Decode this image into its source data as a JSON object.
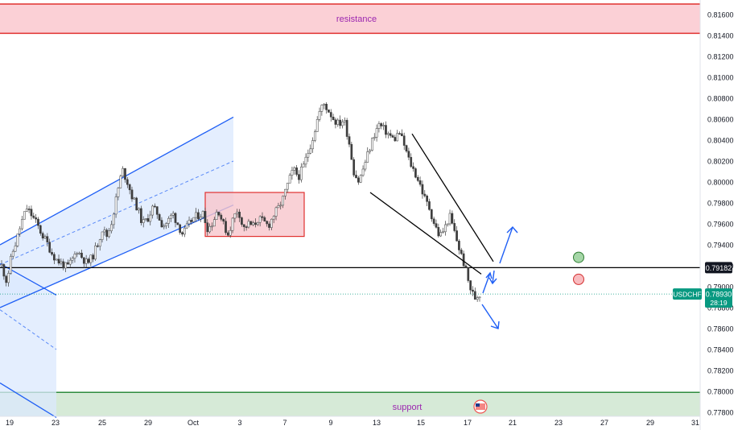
{
  "chart_data": {
    "type": "candlestick",
    "symbol": "USDCHF",
    "last_price": "0.78930",
    "countdown": "28:19",
    "key_level": "0.79182",
    "zone_labels": {
      "resistance": "resistance",
      "support": "support"
    },
    "ylim": [
      0.7776,
      0.818
    ],
    "y_ticks": [
      "0.81600",
      "0.81400",
      "0.81200",
      "0.81000",
      "0.80800",
      "0.80600",
      "0.80400",
      "0.80200",
      "0.80000",
      "0.79800",
      "0.79600",
      "0.79400",
      "0.79200",
      "0.79000",
      "0.78800",
      "0.78600",
      "0.78400",
      "0.78200",
      "0.78000",
      "0.77800"
    ],
    "x_ticks": [
      "19",
      "23",
      "25",
      "29",
      "Oct",
      "3",
      "7",
      "9",
      "13",
      "15",
      "17",
      "21",
      "23",
      "27",
      "29",
      "31"
    ],
    "resistance_zone": [
      0.8142,
      0.817
    ],
    "support_zone": [
      0.7779,
      0.7799
    ],
    "price_path": [
      [
        0.792,
        0.7905,
        0.793,
        0.7945,
        0.7962,
        0.7975,
        0.7968,
        0.796,
        0.795,
        0.7942,
        0.7932,
        0.7925,
        0.7922,
        0.7918,
        0.7925,
        0.7935,
        0.7928,
        0.7922,
        0.7928,
        0.794,
        0.7955,
        0.7948,
        0.7965,
        0.799,
        0.8012,
        0.8,
        0.7985,
        0.7975,
        0.796,
        0.7965,
        0.7975,
        0.797,
        0.7958,
        0.7962,
        0.797,
        0.796,
        0.795,
        0.7958,
        0.7965,
        0.7968,
        0.797,
        0.7955,
        0.7962,
        0.7975,
        0.796,
        0.795,
        0.7965,
        0.7975,
        0.7955,
        0.796,
        0.7958,
        0.7965,
        0.7962,
        0.7958,
        0.7968,
        0.7975,
        0.7985,
        0.8,
        0.8012,
        0.8005,
        0.8015,
        0.803,
        0.8045,
        0.8065,
        0.8075,
        0.8068,
        0.806,
        0.8055,
        0.806,
        0.804,
        0.801,
        0.8,
        0.8015,
        0.803,
        0.8045,
        0.8055,
        0.805,
        0.8045,
        0.804,
        0.8048,
        0.8035,
        0.802,
        0.801,
        0.8,
        0.7985,
        0.7975,
        0.796,
        0.7948,
        0.7955,
        0.7968,
        0.7952,
        0.7935,
        0.792,
        0.79,
        0.7889,
        0.7893
      ]
    ],
    "candle_range": [
      0.792,
      0.7893
    ],
    "wedge_upper": [
      [
        0.8046,
        0.7924
      ]
    ],
    "wedge_lower": [
      [
        0.799,
        0.7912
      ]
    ],
    "channel_upper": [
      [
        0.794,
        0.8062
      ]
    ],
    "channel_mid": [
      [
        0.792,
        0.802
      ]
    ],
    "channel_lower": [
      [
        0.788,
        0.7978
      ]
    ],
    "consolidation_box": [
      0.7948,
      0.799
    ],
    "scenario_up_target": 0.7956,
    "scenario_down_target": 0.7864,
    "buy_marker": 0.7928,
    "sell_marker": 0.7907,
    "colors": {
      "bull": "#26a69a",
      "bear": "#ef5350",
      "candle": "#3d3d3d",
      "trendline": "#1f5ff5",
      "resistance_fill": "#fbd0d6",
      "resistance_line": "#e0312f",
      "support_fill": "#d6ead7",
      "support_line": "#2e8b3d",
      "label_text": "#9c27b0",
      "price_badge": "#089981",
      "key_badge": "#131722"
    }
  }
}
